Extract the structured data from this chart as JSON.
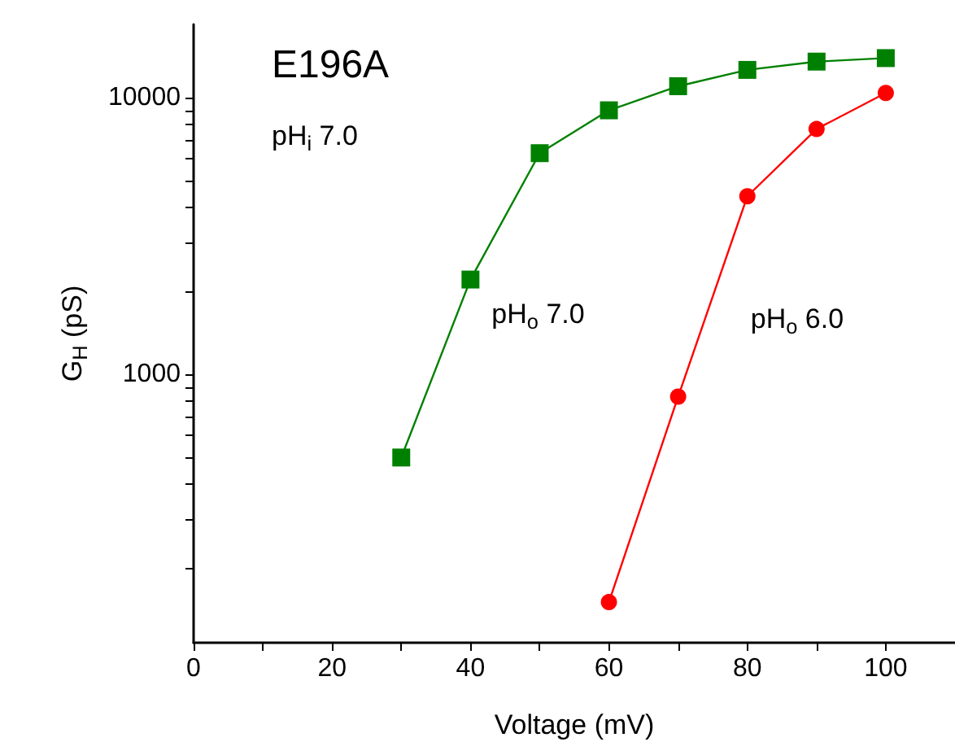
{
  "chart_data": {
    "type": "line",
    "xlabel": "Voltage (mV)",
    "ylabel": "G$_{H}$ (pS)",
    "annotations": [
      "E196A",
      "pH$_{i}$ 7.0"
    ],
    "log": "y",
    "grid": false,
    "legend": false,
    "line_style": "solid",
    "xlim": [
      0,
      110
    ],
    "xticks": [
      0,
      {
        "value": 10,
        "label": null
      },
      20,
      {
        "value": 30,
        "label": null
      },
      40,
      {
        "value": 50,
        "label": null
      },
      60,
      {
        "value": 70,
        "label": null
      },
      80,
      {
        "value": 90,
        "label": null
      },
      100,
      {
        "value": 110,
        "label": null
      }
    ],
    "ylim": [
      107,
      18400
    ],
    "yticks": [
      {
        "value": 200,
        "label": null
      },
      {
        "value": 300,
        "label": null
      },
      {
        "value": 400,
        "label": null
      },
      {
        "value": 500,
        "label": null
      },
      {
        "value": 600,
        "label": null
      },
      {
        "value": 700,
        "label": null
      },
      {
        "value": 800,
        "label": null
      },
      {
        "value": 900,
        "label": null
      },
      1000,
      {
        "value": 2000,
        "label": null
      },
      {
        "value": 3000,
        "label": null
      },
      {
        "value": 4000,
        "label": null
      },
      {
        "value": 5000,
        "label": null
      },
      {
        "value": 6000,
        "label": null
      },
      {
        "value": 7000,
        "label": null
      },
      {
        "value": 8000,
        "label": null
      },
      {
        "value": 9000,
        "label": null
      },
      10000
    ],
    "series": [
      {
        "name": "pH$_{o}$ 7.0",
        "color": "#008000",
        "marker": "square",
        "x": [
          30,
          40,
          50,
          60,
          70,
          80,
          90,
          100
        ],
        "values": [
          500,
          2200,
          6300,
          9000,
          11000,
          12600,
          13500,
          13900
        ]
      },
      {
        "name": "pH$_{o}$ 6.0",
        "color": "#ff0000",
        "marker": "circle",
        "x": [
          60,
          70,
          80,
          90,
          100
        ],
        "values": [
          150,
          830,
          4400,
          7700,
          10400
        ]
      }
    ]
  }
}
